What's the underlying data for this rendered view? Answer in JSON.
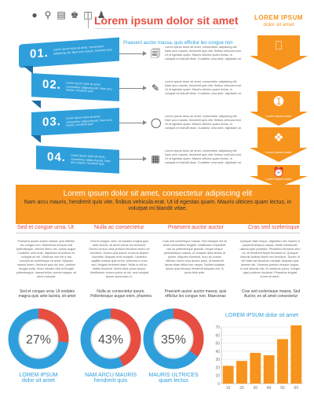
{
  "title": "Lorem ipsum dolor sit amet",
  "icons": [
    "light-bulb-icon",
    "key-icon",
    "document-icon",
    "people-icon",
    "trash-icon",
    "person-icon"
  ],
  "right_panel": {
    "heading": "LOREM IPSUM",
    "subheading": "dolor sit amet",
    "items": [
      {
        "icon": "monitor-icon",
        "label": ""
      },
      {
        "icon": "medal-icon",
        "label": "Lorem ipsum dolor"
      },
      {
        "icon": "puzzle-icon",
        "label": "Lorem ipsum dolor"
      },
      {
        "icon": "alarm-clock-icon",
        "label": "Lorem ipsum dolor"
      }
    ]
  },
  "steps_headline": "Praesent auctor massa, quis efficitur leo congue non",
  "steps": [
    {
      "number": "01.",
      "ribbon_text": "Lorem ipsum dolor sit amet, consectetur adipiscing elit. Nam arcu mauris, hendrerit quis",
      "icon": "documents-icon",
      "text": "Lorem ipsum dolor sit amet, consectetur adipiscing elit. Nam arcu mauris, hendrerit quis vite, finibus vehicula erat. Ut id egestas quam. Mauris ultrices quam lectus, in volutpat mi blandit vitae. Curabitur urna ante, dignissim at."
    },
    {
      "number": "02.",
      "ribbon_text": "Lorem ipsum dolor sit amet, consectetur adipiscing elit. Nam arcu mauris, hendrerit quis",
      "icon": "note-icon",
      "text": "Lorem ipsum dolor sit amet, consectetur adipiscing elit. Nam arcu mauris, hendrerit quis vite, finibus vehicula erat. Ut id egestas quam. Mauris ultrices quam lectus, in volutpat mi blandit vitae. Curabitur urna ante, dignissim at."
    },
    {
      "number": "03.",
      "ribbon_text": "Lorem ipsum dolor sit amet, consectetur adipiscing elit. Nam arcu mauris, hendrerit quis",
      "icon": "bulb-icon",
      "text": "Lorem ipsum dolor sit amet, consectetur adipiscing elit. Nam arcu mauris, hendrerit quis vite, finibus vehicula erat. Ut id egestas quam. Mauris ultrices quam lectus, in volutpat mi blandit vitae. Curabitur urna ante, dignissim at."
    },
    {
      "number": "04.",
      "ribbon_text": "Lorem ipsum dolor sit amet, consectetur adipiscing elit. Nam arcu mauris, hendrerit quis",
      "icon": "gift-icon",
      "text": "Lorem ipsum dolor sit amet, consectetur adipiscing elit. Nam arcu mauris, hendrerit quis vite, finibus vehicula erat. Ut id egestas quam. Mauris ultrices quam lectus, in volutpat mi blandit vitae. Curabitur urna ante, dignissim at."
    }
  ],
  "banner": {
    "heading": "Lorem ipsum dolor sit amet, consectetur adipiscing elit",
    "sub": "Nam arcu mauris, hendrerit quis vite, finibus vehicula erat. Ut id egestas quam. Mauris ultrices quam lectus, in volutpat mi blandit vitae."
  },
  "columns": [
    {
      "title": "Sed et congue urna. Ut",
      "text": "Praesent auctor auctor massa, quis efficitur leo congue non. Maecenas tempus erat pellentesque, ultrices libero vel, varius augue. Curabitur urna ante, dignissim at pretium et, volutpat at nisi. Vivamus non est a nisi suscipit ac scelerisque sit amet. Aliquam massa lorem, tincidunt quis dui non, pretium feugiat nulla. Nunc lobortis nibh id feugiat pellentesque, massa tellus viverra magna, sit amet volutpat.",
      "summary": "Sed et congue urna. Ut sodales magna quis ante lacinia, sit amet"
    },
    {
      "title": "Nulla ac consectetur",
      "text": "Sed et congue urna. Ut sodales magna quis ante lacinia, sit amet luctus dui tincidunt. Donec cursus urna pretium tincidunt lorem vel tincidunt. Donec quis ipsum ut purus aliquet convallis. Aliquam erat volutpat. Curabitur sagittis massa quis lorem, pharetra a nunc sed, feugiat hendrerit diam. Nulla ut elit ac mattis tincidunt. Morbi vitae purus ipsum. Vestibulum viverra purus at dui, sed volutpat ipsum accumsan in.",
      "summary": "Nulla ac consectetur ipsum, Pellentesque augue enim, pharetra"
    },
    {
      "title": "Praesent auctor auctor",
      "text": "Cras sed scelerisque massa. Sed tristique est sit amet consectetur fringilla. Vestibulum imperdiet, nisi ac pellentesque gravida, neque neque pellentesque massa, ut volutpat diam lectus at ipsum. Aliquam euismod, arcu ac cursus efficitur, lorem eros auctor justo, id hendrerit ipsum diam tellus nec neque. Nullam sodales ipsum quis tempus hendrerit aliquam nisl, in porta felis ante.",
      "summary": "Praesent auctor auctor massa, quis efficitur leo congue non. Maecenas"
    },
    {
      "title": "Cras sed scelerisque",
      "text": "Quisque vitae neque, dignissim nec mauris in placerat tempus massa. Morbi sollicitudin ullamcorper pharetra. Phasellus tincidunt sem mi, at hendrerit turpis tincidunt id. Quisque lobortis facilisis libero nec tincidunt. Donec ut elit vitae est faucibus volutpat. Aliquam quis laoreet nisl. Vivamus pretium tempor augue. In sed lobortis nisl, et maximus purus. Integer eget pulvinar tincidunt. Phasellus feugiat lorem sit amet.",
      "summary": "Cras sed scelerisque massa. Sed Auctor, ex sit amet consectetur"
    }
  ],
  "donuts": [
    {
      "percent_label": "27%",
      "value": 27,
      "label_a": "LOREM IPSUM",
      "label_b": "dolor sit amet"
    },
    {
      "percent_label": "43%",
      "value": 43,
      "label_a": "NAM ARCU MAURIS",
      "label_b": "hendrerit quis"
    },
    {
      "percent_label": "35%",
      "value": 35,
      "label_a": "MAURIS ULTRICES",
      "label_b": "quam lectus"
    }
  ],
  "colors": {
    "blue": "#2f9fdb",
    "orange": "#f7941d",
    "red": "#e84e40",
    "gray": "#d9d9d9"
  },
  "chart_data": {
    "type": "bar",
    "title": "LOREM IPSUM dolor sit amet",
    "categories": [
      "10",
      "20",
      "30",
      "40",
      "50",
      "60"
    ],
    "values": [
      22,
      28,
      38,
      35,
      55,
      72
    ],
    "ylim": [
      0,
      70
    ],
    "yticks": [
      "0",
      "10",
      "20",
      "30",
      "40",
      "50",
      "60",
      "70"
    ],
    "grid": true
  }
}
